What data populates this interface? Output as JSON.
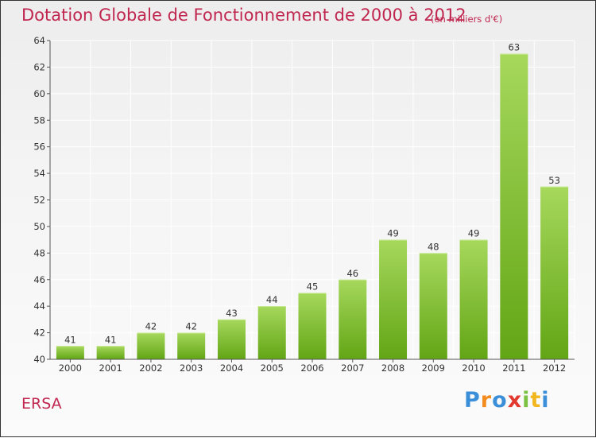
{
  "title": "Dotation Globale de Fonctionnement de 2000 à 2012",
  "subtitle": "(en milliers d'€)",
  "commune": "ERSA",
  "logo": {
    "text": "Proxiti",
    "letters": [
      {
        "char": "P",
        "color": "#3a8fd8"
      },
      {
        "char": "r",
        "color": "#f28c1e"
      },
      {
        "char": "o",
        "color": "#3a8fd8"
      },
      {
        "char": "x",
        "color": "#e23a2f"
      },
      {
        "char": "i",
        "color": "#7cc242"
      },
      {
        "char": "t",
        "color": "#f2b61e"
      },
      {
        "char": "i",
        "color": "#3a8fd8"
      }
    ]
  },
  "colors": {
    "accent": "#c0264f",
    "bar_top": "#a6d85c",
    "bar_bottom": "#62a515",
    "axis": "#555555",
    "grid": "#ffffff"
  },
  "chart_data": {
    "type": "bar",
    "categories": [
      "2000",
      "2001",
      "2002",
      "2003",
      "2004",
      "2005",
      "2006",
      "2007",
      "2008",
      "2009",
      "2010",
      "2011",
      "2012"
    ],
    "values": [
      41,
      41,
      42,
      42,
      43,
      44,
      45,
      46,
      49,
      48,
      49,
      63,
      53
    ],
    "title": "Dotation Globale de Fonctionnement de 2000 à 2012",
    "subtitle": "(en milliers d'€)",
    "xlabel": "",
    "ylabel": "",
    "ylim": [
      40,
      64
    ],
    "yticks": [
      40,
      42,
      44,
      46,
      48,
      50,
      52,
      54,
      56,
      58,
      60,
      62,
      64
    ],
    "grid": true,
    "data_labels": true,
    "legend": "none"
  }
}
